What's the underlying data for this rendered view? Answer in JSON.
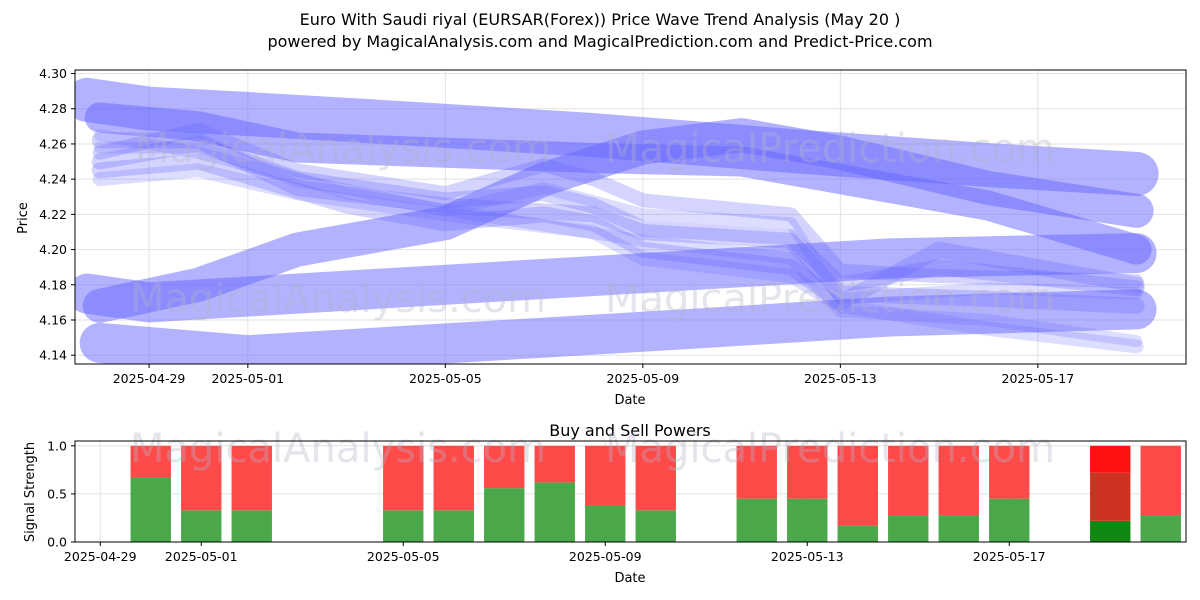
{
  "title_line1": "Euro With Saudi riyal (EURSAR(Forex)) Price Wave Trend Analysis (May 20 )",
  "title_line2": "powered by MagicalAnalysis.com and MagicalPrediction.com and Predict-Price.com",
  "watermarks": {
    "left": "MagicalAnalysis.com",
    "right": "MagicalPrediction.com"
  },
  "colors": {
    "wave": "#6666ff",
    "buy": "#4aa84a",
    "sell": "#ff4a4a",
    "buy_strong": "#118811",
    "sell_mid": "#cc3322",
    "sell_strong": "#ff1111"
  },
  "chart_data": [
    {
      "type": "line",
      "title": "",
      "xlabel": "Date",
      "ylabel": "Price",
      "xlim": [
        "2025-04-27T12:00",
        "2025-05-20T00:00"
      ],
      "ylim": [
        4.135,
        4.302
      ],
      "x_ticks": [
        "2025-04-29",
        "2025-05-01",
        "2025-05-05",
        "2025-05-09",
        "2025-05-13",
        "2025-05-17"
      ],
      "y_ticks": [
        "4.14",
        "4.16",
        "4.18",
        "4.20",
        "4.22",
        "4.24",
        "4.26",
        "4.28",
        "4.30"
      ],
      "grid": true,
      "series": [
        {
          "width": 44,
          "opacity": 0.5,
          "points": [
            [
              "2025-04-27T18:00",
              4.285
            ],
            [
              "2025-04-29",
              4.28
            ],
            [
              "2025-05-01",
              4.277
            ],
            [
              "2025-05-04",
              4.272
            ],
            [
              "2025-05-08",
              4.265
            ],
            [
              "2025-05-12",
              4.256
            ],
            [
              "2025-05-16",
              4.248
            ],
            [
              "2025-05-19",
              4.243
            ]
          ]
        },
        {
          "width": 40,
          "opacity": 0.5,
          "points": [
            [
              "2025-04-27T18:00",
              4.175
            ],
            [
              "2025-04-29",
              4.17
            ],
            [
              "2025-05-02",
              4.175
            ],
            [
              "2025-05-05",
              4.18
            ],
            [
              "2025-05-08",
              4.185
            ],
            [
              "2025-05-11",
              4.19
            ],
            [
              "2025-05-14",
              4.195
            ],
            [
              "2025-05-19",
              4.198
            ]
          ]
        },
        {
          "width": 40,
          "opacity": 0.5,
          "points": [
            [
              "2025-04-28",
              4.147
            ],
            [
              "2025-05-01",
              4.14
            ],
            [
              "2025-05-04",
              4.145
            ],
            [
              "2025-05-07",
              4.15
            ],
            [
              "2025-05-10",
              4.155
            ],
            [
              "2025-05-14",
              4.162
            ],
            [
              "2025-05-19",
              4.166
            ]
          ]
        },
        {
          "width": 34,
          "opacity": 0.5,
          "points": [
            [
              "2025-04-28",
              4.168
            ],
            [
              "2025-04-30",
              4.18
            ],
            [
              "2025-05-02",
              4.2
            ],
            [
              "2025-05-05",
              4.215
            ],
            [
              "2025-05-07",
              4.24
            ],
            [
              "2025-05-09",
              4.258
            ],
            [
              "2025-05-11",
              4.265
            ],
            [
              "2025-05-13",
              4.255
            ],
            [
              "2025-05-16",
              4.235
            ],
            [
              "2025-05-19",
              4.222
            ]
          ]
        },
        {
          "width": 30,
          "opacity": 0.5,
          "points": [
            [
              "2025-04-28",
              4.275
            ],
            [
              "2025-04-30",
              4.27
            ],
            [
              "2025-05-02",
              4.258
            ],
            [
              "2025-05-05",
              4.255
            ],
            [
              "2025-05-08",
              4.252
            ],
            [
              "2025-05-11",
              4.25
            ],
            [
              "2025-05-13",
              4.24
            ],
            [
              "2025-05-16",
              4.225
            ],
            [
              "2025-05-19",
              4.2
            ]
          ]
        },
        {
          "width": 16,
          "opacity": 0.28,
          "points": [
            [
              "2025-04-28",
              4.262
            ],
            [
              "2025-04-30",
              4.262
            ],
            [
              "2025-05-02",
              4.235
            ],
            [
              "2025-05-05",
              4.225
            ],
            [
              "2025-05-08",
              4.22
            ],
            [
              "2025-05-09",
              4.21
            ],
            [
              "2025-05-12",
              4.205
            ],
            [
              "2025-05-13",
              4.175
            ],
            [
              "2025-05-16",
              4.172
            ],
            [
              "2025-05-19",
              4.168
            ]
          ]
        },
        {
          "width": 16,
          "opacity": 0.28,
          "points": [
            [
              "2025-04-28",
              4.25
            ],
            [
              "2025-04-30",
              4.26
            ],
            [
              "2025-05-02",
              4.24
            ],
            [
              "2025-05-05",
              4.228
            ],
            [
              "2025-05-07",
              4.232
            ],
            [
              "2025-05-08",
              4.225
            ],
            [
              "2025-05-09",
              4.212
            ],
            [
              "2025-05-12",
              4.207
            ],
            [
              "2025-05-13",
              4.18
            ],
            [
              "2025-05-15",
              4.19
            ],
            [
              "2025-05-19",
              4.178
            ]
          ]
        },
        {
          "width": 16,
          "opacity": 0.28,
          "points": [
            [
              "2025-04-28",
              4.245
            ],
            [
              "2025-04-30",
              4.25
            ],
            [
              "2025-05-03",
              4.225
            ],
            [
              "2025-05-05",
              4.215
            ],
            [
              "2025-05-07",
              4.22
            ],
            [
              "2025-05-08",
              4.215
            ],
            [
              "2025-05-09",
              4.2
            ],
            [
              "2025-05-12",
              4.19
            ],
            [
              "2025-05-13",
              4.17
            ],
            [
              "2025-05-15",
              4.2
            ],
            [
              "2025-05-19",
              4.18
            ]
          ]
        },
        {
          "width": 14,
          "opacity": 0.28,
          "points": [
            [
              "2025-04-28",
              4.255
            ],
            [
              "2025-04-30",
              4.268
            ],
            [
              "2025-05-02",
              4.245
            ],
            [
              "2025-05-05",
              4.232
            ],
            [
              "2025-05-07",
              4.248
            ],
            [
              "2025-05-08",
              4.24
            ],
            [
              "2025-05-09",
              4.228
            ],
            [
              "2025-05-12",
              4.22
            ],
            [
              "2025-05-13",
              4.188
            ],
            [
              "2025-05-15",
              4.185
            ],
            [
              "2025-05-19",
              4.182
            ]
          ]
        },
        {
          "width": 14,
          "opacity": 0.22,
          "points": [
            [
              "2025-04-28",
              4.24
            ],
            [
              "2025-04-30",
              4.245
            ],
            [
              "2025-05-02",
              4.232
            ],
            [
              "2025-05-05",
              4.22
            ],
            [
              "2025-05-08",
              4.21
            ],
            [
              "2025-05-09",
              4.195
            ],
            [
              "2025-05-12",
              4.185
            ],
            [
              "2025-05-13",
              4.168
            ],
            [
              "2025-05-16",
              4.155
            ],
            [
              "2025-05-19",
              4.145
            ]
          ]
        },
        {
          "width": 12,
          "opacity": 0.22,
          "points": [
            [
              "2025-04-28",
              4.265
            ],
            [
              "2025-04-30",
              4.255
            ],
            [
              "2025-05-02",
              4.24
            ],
            [
              "2025-05-05",
              4.222
            ],
            [
              "2025-05-07",
              4.235
            ],
            [
              "2025-05-09",
              4.22
            ],
            [
              "2025-05-12",
              4.215
            ],
            [
              "2025-05-13",
              4.172
            ],
            [
              "2025-05-16",
              4.178
            ],
            [
              "2025-05-19",
              4.175
            ]
          ]
        },
        {
          "width": 12,
          "opacity": 0.22,
          "points": [
            [
              "2025-04-28",
              4.258
            ],
            [
              "2025-04-30",
              4.258
            ],
            [
              "2025-05-03",
              4.232
            ],
            [
              "2025-05-06",
              4.218
            ],
            [
              "2025-05-09",
              4.205
            ],
            [
              "2025-05-12",
              4.195
            ],
            [
              "2025-05-13",
              4.165
            ],
            [
              "2025-05-16",
              4.16
            ],
            [
              "2025-05-19",
              4.148
            ]
          ]
        }
      ]
    },
    {
      "type": "bar",
      "title": "Buy and Sell Powers",
      "xlabel": "Date",
      "ylabel": "Signal Strength",
      "xlim": [
        "2025-04-28T12:00",
        "2025-05-20T12:00"
      ],
      "ylim": [
        0,
        1.05
      ],
      "x_ticks": [
        "2025-04-29",
        "2025-05-01",
        "2025-05-05",
        "2025-05-09",
        "2025-05-13",
        "2025-05-17"
      ],
      "y_ticks": [
        "0.0",
        "0.5",
        "1.0"
      ],
      "grid": true,
      "categories": [
        "2025-04-30",
        "2025-05-01",
        "2025-05-02",
        "2025-05-05",
        "2025-05-06",
        "2025-05-07",
        "2025-05-08",
        "2025-05-09",
        "2025-05-10",
        "2025-05-12",
        "2025-05-13",
        "2025-05-14",
        "2025-05-15",
        "2025-05-16",
        "2025-05-17",
        "2025-05-19",
        "2025-05-20"
      ],
      "series": [
        {
          "name": "Buy",
          "values": [
            0.67,
            0.33,
            0.33,
            0.33,
            0.33,
            0.56,
            0.62,
            0.38,
            0.33,
            0.45,
            0.45,
            0.17,
            0.28,
            0.28,
            0.45,
            0.22,
            0.28
          ]
        },
        {
          "name": "Sell",
          "values": [
            0.33,
            0.67,
            0.67,
            0.67,
            0.67,
            0.44,
            0.38,
            0.62,
            0.67,
            0.55,
            0.55,
            0.83,
            0.72,
            0.72,
            0.55,
            0.78,
            0.72
          ]
        }
      ],
      "highlight": {
        "category": "2025-05-19",
        "segments": [
          0.22,
          0.5,
          0.28
        ]
      }
    }
  ]
}
